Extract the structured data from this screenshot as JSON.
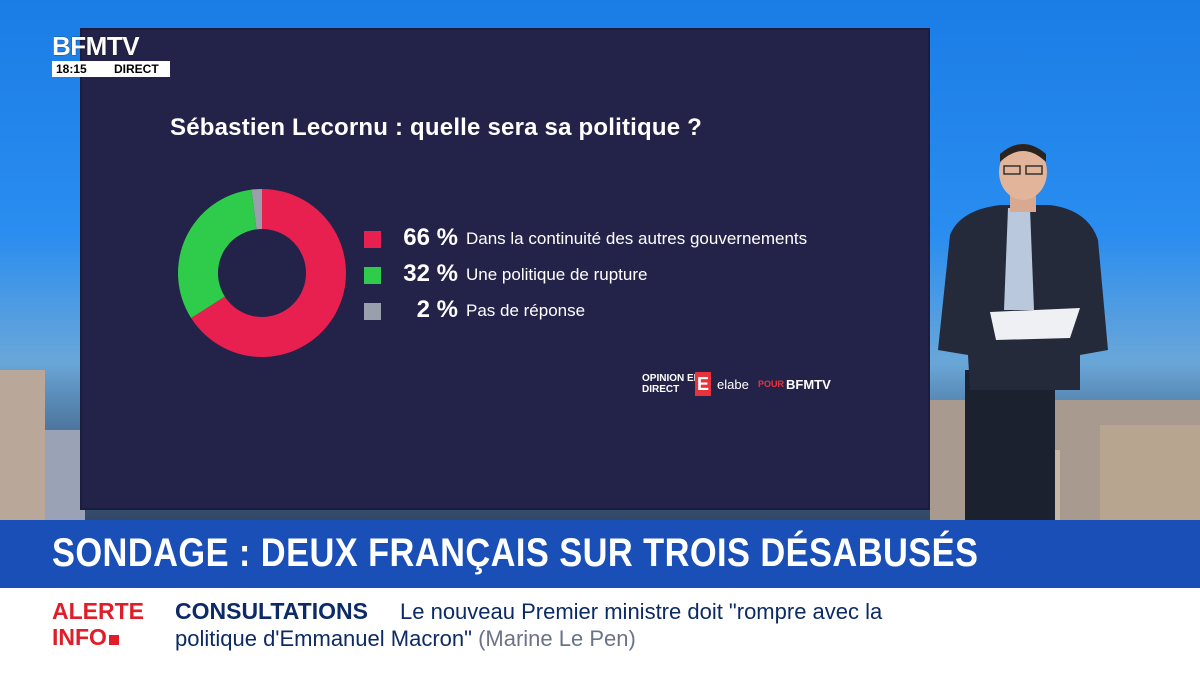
{
  "channel": {
    "logo": "BFMTV",
    "time": "18:15",
    "live": "DIRECT"
  },
  "chart_data": {
    "type": "pie",
    "style": "donut",
    "title": "Sébastien Lecornu : quelle sera sa politique ?",
    "slices": [
      {
        "value": 66,
        "pct_label": "66 %",
        "label": "Dans la continuité des autres gouvernements",
        "color": "#e8204f"
      },
      {
        "value": 32,
        "pct_label": "32 %",
        "label": "Une politique de rupture",
        "color": "#2ecc4a"
      },
      {
        "value": 2,
        "pct_label": "2 %",
        "label": "Pas de réponse",
        "color": "#9aa0ab"
      }
    ],
    "legend_position": "right"
  },
  "source": {
    "opinion": "OPINION EN DIRECT",
    "e": "E",
    "elabe": "elabe",
    "pour": "POUR",
    "bfmtv": "BFMTV"
  },
  "headline": "SONDAGE : DEUX FRANÇAIS SUR TROIS DÉSABUSÉS",
  "ticker": {
    "alert_line1": "ALERTE",
    "alert_line2": "INFO",
    "topic": "CONSULTATIONS",
    "line1": "Le nouveau Premier ministre doit \"rompre avec la",
    "line2": "politique d'Emmanuel Macron\"",
    "attribution": "(Marine Le Pen)"
  }
}
